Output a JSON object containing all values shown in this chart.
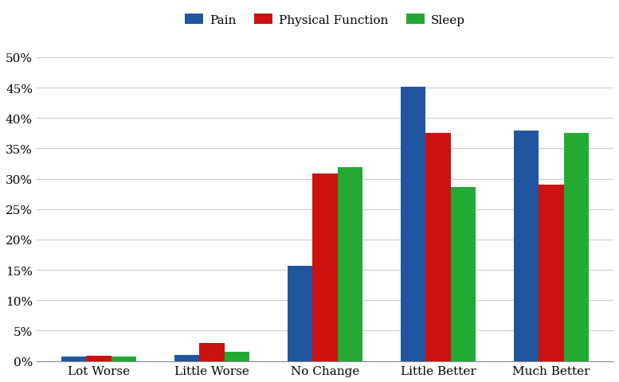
{
  "categories": [
    "Lot Worse",
    "Little Worse",
    "No Change",
    "Little Better",
    "Much Better"
  ],
  "series": [
    {
      "name": "Pain",
      "color": "#2155a0",
      "values": [
        0.7,
        1.0,
        15.6,
        45.1,
        38.0
      ]
    },
    {
      "name": "Physical Function",
      "color": "#cc1111",
      "values": [
        0.8,
        3.0,
        30.8,
        37.5,
        29.0
      ]
    },
    {
      "name": "Sleep",
      "color": "#22aa33",
      "values": [
        0.7,
        1.5,
        31.9,
        28.6,
        37.6
      ]
    }
  ],
  "ylim": [
    0,
    52
  ],
  "yticks": [
    0,
    5,
    10,
    15,
    20,
    25,
    30,
    35,
    40,
    45,
    50
  ],
  "bar_width": 0.22,
  "figsize": [
    7.77,
    4.81
  ],
  "dpi": 100,
  "bg_color": "#ffffff",
  "grid_color": "#cccccc",
  "grid_alpha": 1.0,
  "tick_fontsize": 11,
  "legend_fontsize": 11,
  "font_family": "DejaVu Serif"
}
